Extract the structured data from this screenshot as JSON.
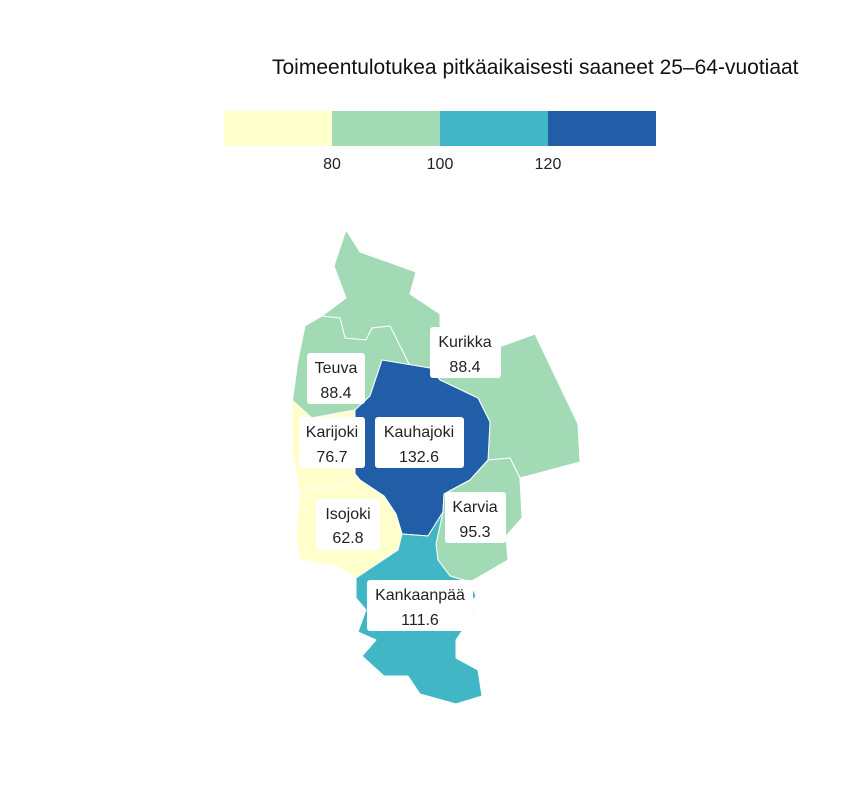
{
  "title": "Toimeentulotukea pitkäaikaisesti saaneet 25–64-vuotiaat",
  "legend": {
    "bins": [
      {
        "min": null,
        "max": 80,
        "color": "#ffffcc"
      },
      {
        "min": 80,
        "max": 100,
        "color": "#a1dab4"
      },
      {
        "min": 100,
        "max": 120,
        "color": "#41b6c4"
      },
      {
        "min": 120,
        "max": null,
        "color": "#225ea8"
      }
    ],
    "tick_labels": [
      "80",
      "100",
      "120"
    ]
  },
  "regions": [
    {
      "id": "kurikka",
      "name": "Kurikka",
      "value": "88.4",
      "color": "#a1dab4"
    },
    {
      "id": "teuva",
      "name": "Teuva",
      "value": "88.4",
      "color": "#a1dab4"
    },
    {
      "id": "karijoki",
      "name": "Karijoki",
      "value": "76.7",
      "color": "#ffffcc"
    },
    {
      "id": "kauhajoki",
      "name": "Kauhajoki",
      "value": "132.6",
      "color": "#225ea8"
    },
    {
      "id": "isojoki",
      "name": "Isojoki",
      "value": "62.8",
      "color": "#ffffcc"
    },
    {
      "id": "karvia",
      "name": "Karvia",
      "value": "95.3",
      "color": "#a1dab4"
    },
    {
      "id": "kankaanpaa",
      "name": "Kankaanpää",
      "value": "111.6",
      "color": "#41b6c4"
    }
  ]
}
